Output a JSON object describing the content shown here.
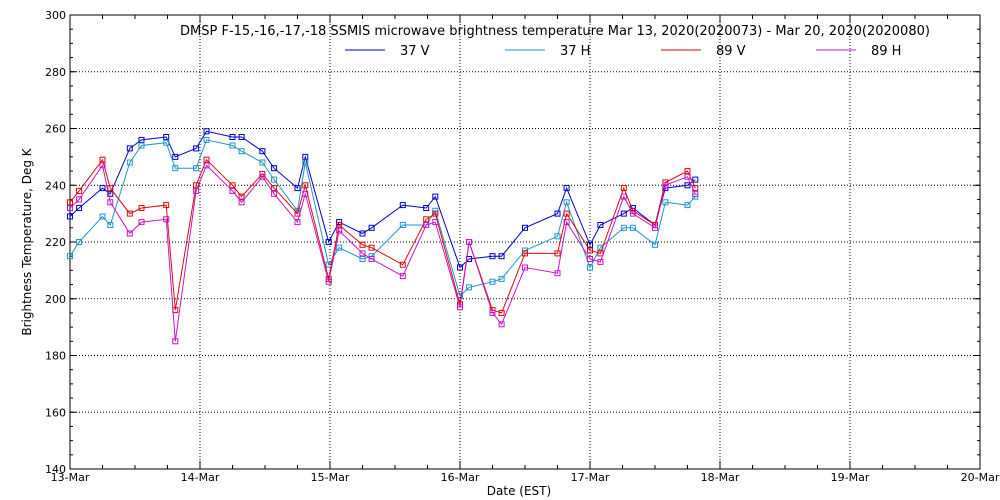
{
  "chart_data": {
    "type": "line",
    "title": "DMSP F-15,-16,-17,-18 SSMIS microwave brightness temperature Mar 13, 2020(2020073) - Mar 20, 2020(2020080)",
    "xlabel": "Date (EST)",
    "ylabel": "Brightness Temperature, Deg K",
    "xlim": [
      0,
      7
    ],
    "ylim": [
      140,
      300
    ],
    "x_ticks": [
      {
        "value": 0,
        "label": "13-Mar"
      },
      {
        "value": 1,
        "label": "14-Mar"
      },
      {
        "value": 2,
        "label": "15-Mar"
      },
      {
        "value": 3,
        "label": "16-Mar"
      },
      {
        "value": 4,
        "label": "17-Mar"
      },
      {
        "value": 5,
        "label": "18-Mar"
      },
      {
        "value": 6,
        "label": "19-Mar"
      },
      {
        "value": 7,
        "label": "20-Mar"
      }
    ],
    "y_ticks": [
      140,
      160,
      180,
      200,
      220,
      240,
      260,
      280,
      300
    ],
    "grid": true,
    "series": [
      {
        "name": "37 V",
        "color": "#0000c8",
        "points": [
          [
            0.0,
            229
          ],
          [
            0.07,
            232
          ],
          [
            0.25,
            239
          ],
          [
            0.31,
            237
          ],
          [
            0.46,
            253
          ],
          [
            0.55,
            256
          ],
          [
            0.74,
            257
          ],
          [
            0.81,
            250
          ],
          [
            0.97,
            253
          ],
          [
            1.05,
            259
          ],
          [
            1.25,
            257
          ],
          [
            1.32,
            257
          ],
          [
            1.48,
            252
          ],
          [
            1.57,
            246
          ],
          [
            1.75,
            239
          ],
          [
            1.81,
            250
          ],
          [
            1.99,
            220
          ],
          [
            2.07,
            227
          ],
          [
            2.25,
            223
          ],
          [
            2.32,
            225
          ],
          [
            2.56,
            233
          ],
          [
            2.74,
            232
          ],
          [
            2.81,
            236
          ],
          [
            3.0,
            211
          ],
          [
            3.07,
            214
          ],
          [
            3.25,
            215
          ],
          [
            3.32,
            215
          ],
          [
            3.5,
            225
          ],
          [
            3.75,
            230
          ],
          [
            3.82,
            239
          ],
          [
            4.0,
            219
          ],
          [
            4.08,
            226
          ],
          [
            4.26,
            230
          ],
          [
            4.33,
            232
          ],
          [
            4.5,
            226
          ],
          [
            4.58,
            239
          ],
          [
            4.75,
            240
          ],
          [
            4.81,
            242
          ]
        ]
      },
      {
        "name": "37 H",
        "color": "#1e96c8",
        "points": [
          [
            0.0,
            215
          ],
          [
            0.07,
            220
          ],
          [
            0.25,
            229
          ],
          [
            0.31,
            226
          ],
          [
            0.46,
            248
          ],
          [
            0.55,
            254
          ],
          [
            0.74,
            255
          ],
          [
            0.81,
            246
          ],
          [
            0.97,
            246
          ],
          [
            1.05,
            256
          ],
          [
            1.25,
            254
          ],
          [
            1.32,
            252
          ],
          [
            1.48,
            248
          ],
          [
            1.57,
            242
          ],
          [
            1.75,
            231
          ],
          [
            1.81,
            248
          ],
          [
            1.99,
            212
          ],
          [
            2.07,
            218
          ],
          [
            2.25,
            214
          ],
          [
            2.32,
            215
          ],
          [
            2.56,
            226
          ],
          [
            2.74,
            226
          ],
          [
            2.81,
            231
          ],
          [
            3.0,
            201
          ],
          [
            3.07,
            204
          ],
          [
            3.25,
            206
          ],
          [
            3.32,
            207
          ],
          [
            3.5,
            217
          ],
          [
            3.75,
            222
          ],
          [
            3.82,
            234
          ],
          [
            4.0,
            211
          ],
          [
            4.08,
            218
          ],
          [
            4.26,
            225
          ],
          [
            4.33,
            225
          ],
          [
            4.5,
            219
          ],
          [
            4.58,
            234
          ],
          [
            4.75,
            233
          ],
          [
            4.81,
            236
          ]
        ]
      },
      {
        "name": "89 V",
        "color": "#dc0a0a",
        "points": [
          [
            0.0,
            234
          ],
          [
            0.07,
            238
          ],
          [
            0.25,
            249
          ],
          [
            0.31,
            239
          ],
          [
            0.46,
            230
          ],
          [
            0.55,
            232
          ],
          [
            0.74,
            233
          ],
          [
            0.81,
            196
          ],
          [
            0.97,
            240
          ],
          [
            1.05,
            249
          ],
          [
            1.25,
            240
          ],
          [
            1.32,
            236
          ],
          [
            1.48,
            244
          ],
          [
            1.57,
            239
          ],
          [
            1.75,
            230
          ],
          [
            1.81,
            240
          ],
          [
            1.99,
            207
          ],
          [
            2.07,
            226
          ],
          [
            2.25,
            219
          ],
          [
            2.32,
            218
          ],
          [
            2.56,
            212
          ],
          [
            2.74,
            228
          ],
          [
            2.81,
            230
          ],
          [
            3.0,
            198
          ],
          [
            3.07,
            220
          ],
          [
            3.25,
            196
          ],
          [
            3.32,
            195
          ],
          [
            3.5,
            216
          ],
          [
            3.75,
            216
          ],
          [
            3.82,
            230
          ],
          [
            4.0,
            217
          ],
          [
            4.08,
            216
          ],
          [
            4.26,
            239
          ],
          [
            4.33,
            231
          ],
          [
            4.5,
            226
          ],
          [
            4.58,
            241
          ],
          [
            4.75,
            245
          ],
          [
            4.81,
            239
          ]
        ]
      },
      {
        "name": "89 H",
        "color": "#c814c8",
        "points": [
          [
            0.0,
            232
          ],
          [
            0.07,
            235
          ],
          [
            0.25,
            247
          ],
          [
            0.31,
            234
          ],
          [
            0.46,
            223
          ],
          [
            0.55,
            227
          ],
          [
            0.74,
            228
          ],
          [
            0.81,
            185
          ],
          [
            0.97,
            238
          ],
          [
            1.05,
            247
          ],
          [
            1.25,
            238
          ],
          [
            1.32,
            234
          ],
          [
            1.48,
            243
          ],
          [
            1.57,
            237
          ],
          [
            1.75,
            227
          ],
          [
            1.81,
            237
          ],
          [
            1.99,
            206
          ],
          [
            2.07,
            224
          ],
          [
            2.25,
            216
          ],
          [
            2.32,
            214
          ],
          [
            2.56,
            208
          ],
          [
            2.74,
            226
          ],
          [
            2.81,
            227
          ],
          [
            3.0,
            197
          ],
          [
            3.07,
            220
          ],
          [
            3.25,
            195
          ],
          [
            3.32,
            191
          ],
          [
            3.5,
            211
          ],
          [
            3.75,
            209
          ],
          [
            3.82,
            227
          ],
          [
            4.0,
            214
          ],
          [
            4.08,
            213
          ],
          [
            4.26,
            236
          ],
          [
            4.33,
            230
          ],
          [
            4.5,
            225
          ],
          [
            4.58,
            240
          ],
          [
            4.75,
            243
          ],
          [
            4.81,
            237
          ]
        ]
      }
    ]
  }
}
